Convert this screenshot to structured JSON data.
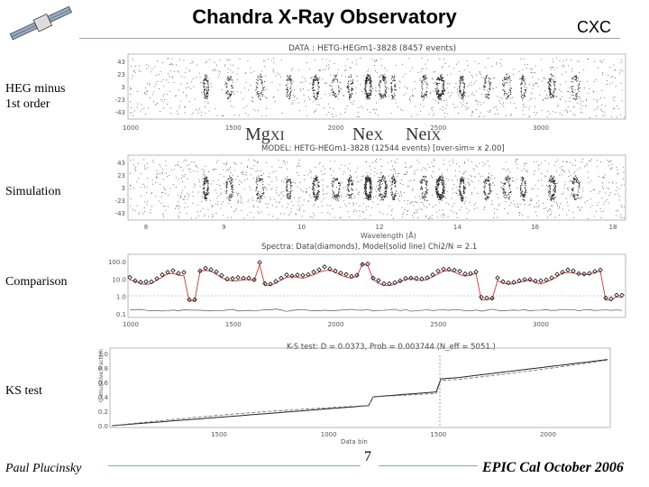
{
  "header": {
    "title": "Chandra X-Ray Observatory",
    "logo_text": "CXC"
  },
  "panels": {
    "heg": {
      "label": "HEG minus 1st order",
      "plot_title": "DATA : HETG-HEGm1-3828 (8457 events)",
      "y_ticks": [
        "43",
        "23",
        "3",
        "-23",
        "-43"
      ],
      "x_ticks": [
        "1000",
        "1500",
        "2000",
        "2500",
        "3000"
      ]
    },
    "lines": {
      "mg": "Mg",
      "mg_ion": "XI",
      "ne1": "Ne",
      "ne1_ion": "X",
      "ne2": "Ne",
      "ne2_ion": "IX"
    },
    "sim": {
      "label": "Simulation",
      "plot_title": "MODEL: HETG-HEGm1-3828 (12544 events) [over-sim= x 2.00]",
      "y_ticks": [
        "43",
        "23",
        "3",
        "-23",
        "-43"
      ],
      "x_ticks": [
        "8",
        "9",
        "10",
        "12",
        "14",
        "16",
        "18"
      ],
      "x_label": "Wavelength (Å)"
    },
    "comparison": {
      "label": "Comparison",
      "plot_title": "Spectra: Data(diamonds), Model(solid line)   Chi2/N = 2.1",
      "y_ticks": [
        "100.0",
        "10.0",
        "1.0",
        "0.1"
      ],
      "x_ticks": [
        "1000",
        "1500",
        "2000",
        "2500",
        "3000"
      ]
    },
    "ks": {
      "label": "KS test",
      "plot_title": "K-S test: D = 0.0373, Prob = 0.003744 (N_eff = 5051.)",
      "y_ticks": [
        "1.0",
        "0.8",
        "0.6",
        "0.4",
        "0.2",
        "0.0"
      ],
      "x_ticks": [
        "1500",
        "1000",
        "1500",
        "2000"
      ],
      "x_label": "Data bin",
      "y_label": "Cumulative fraction"
    }
  },
  "footer": {
    "author": "Paul Plucinsky",
    "page": "7",
    "event": "EPIC Cal October 2006"
  }
}
